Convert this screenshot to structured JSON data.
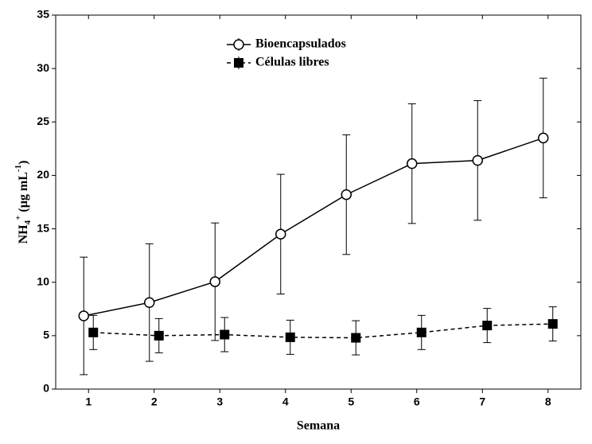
{
  "chart_data": {
    "type": "line",
    "xlabel": "Semana",
    "ylabel_parts": [
      "NH",
      "4",
      "+",
      " (µg mL",
      "-1",
      ")"
    ],
    "x": [
      1,
      2,
      3,
      4,
      5,
      6,
      7,
      8
    ],
    "xlim": [
      0.5,
      8.5
    ],
    "xticks": [
      1,
      2,
      3,
      4,
      5,
      6,
      7,
      8
    ],
    "ylim": [
      0,
      35
    ],
    "yticks": [
      0,
      5,
      10,
      15,
      20,
      25,
      30,
      35
    ],
    "legend": "upper center",
    "series": [
      {
        "name": "Bioencapsulados",
        "color": "#000000",
        "marker": "circle",
        "line_style": "solid",
        "values": [
          6.85,
          8.1,
          10.05,
          14.5,
          18.2,
          21.1,
          21.4,
          23.5
        ],
        "errors": [
          5.5,
          5.5,
          5.5,
          5.6,
          5.6,
          5.6,
          5.6,
          5.6
        ]
      },
      {
        "name": "Células libres",
        "color": "#000000",
        "marker": "square",
        "line_style": "dashed",
        "values": [
          5.3,
          5.0,
          5.1,
          4.85,
          4.8,
          5.3,
          5.95,
          6.1
        ],
        "errors": [
          1.6,
          1.6,
          1.6,
          1.6,
          1.6,
          1.6,
          1.6,
          1.6
        ]
      }
    ]
  }
}
